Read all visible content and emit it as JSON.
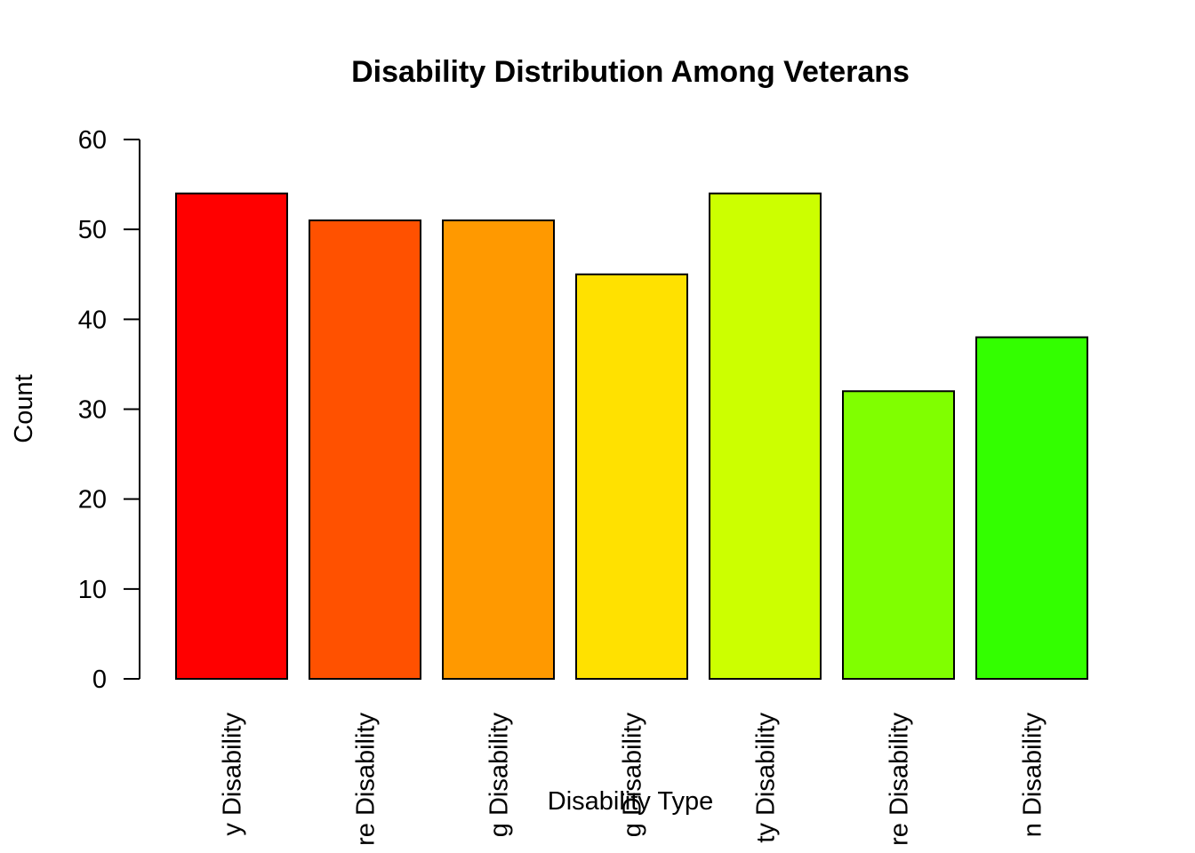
{
  "chart_data": {
    "type": "bar",
    "title": "Disability Distribution Among Veterans",
    "xlabel": "Disability Type",
    "ylabel": "Count",
    "ylim": [
      0,
      60
    ],
    "yticks": [
      0,
      10,
      20,
      30,
      40,
      50,
      60
    ],
    "grid": false,
    "legend": "none",
    "categories": [
      "y Disability",
      "re Disability",
      "g Disability",
      "g Disability",
      "ty Disability",
      "re Disability",
      "n Disability"
    ],
    "values": [
      54,
      51,
      51,
      45,
      54,
      32,
      38
    ],
    "colors": [
      "#FF0000",
      "#FF5100",
      "#FF9900",
      "#FFE100",
      "#CCFF00",
      "#80FF00",
      "#33FF00"
    ]
  }
}
